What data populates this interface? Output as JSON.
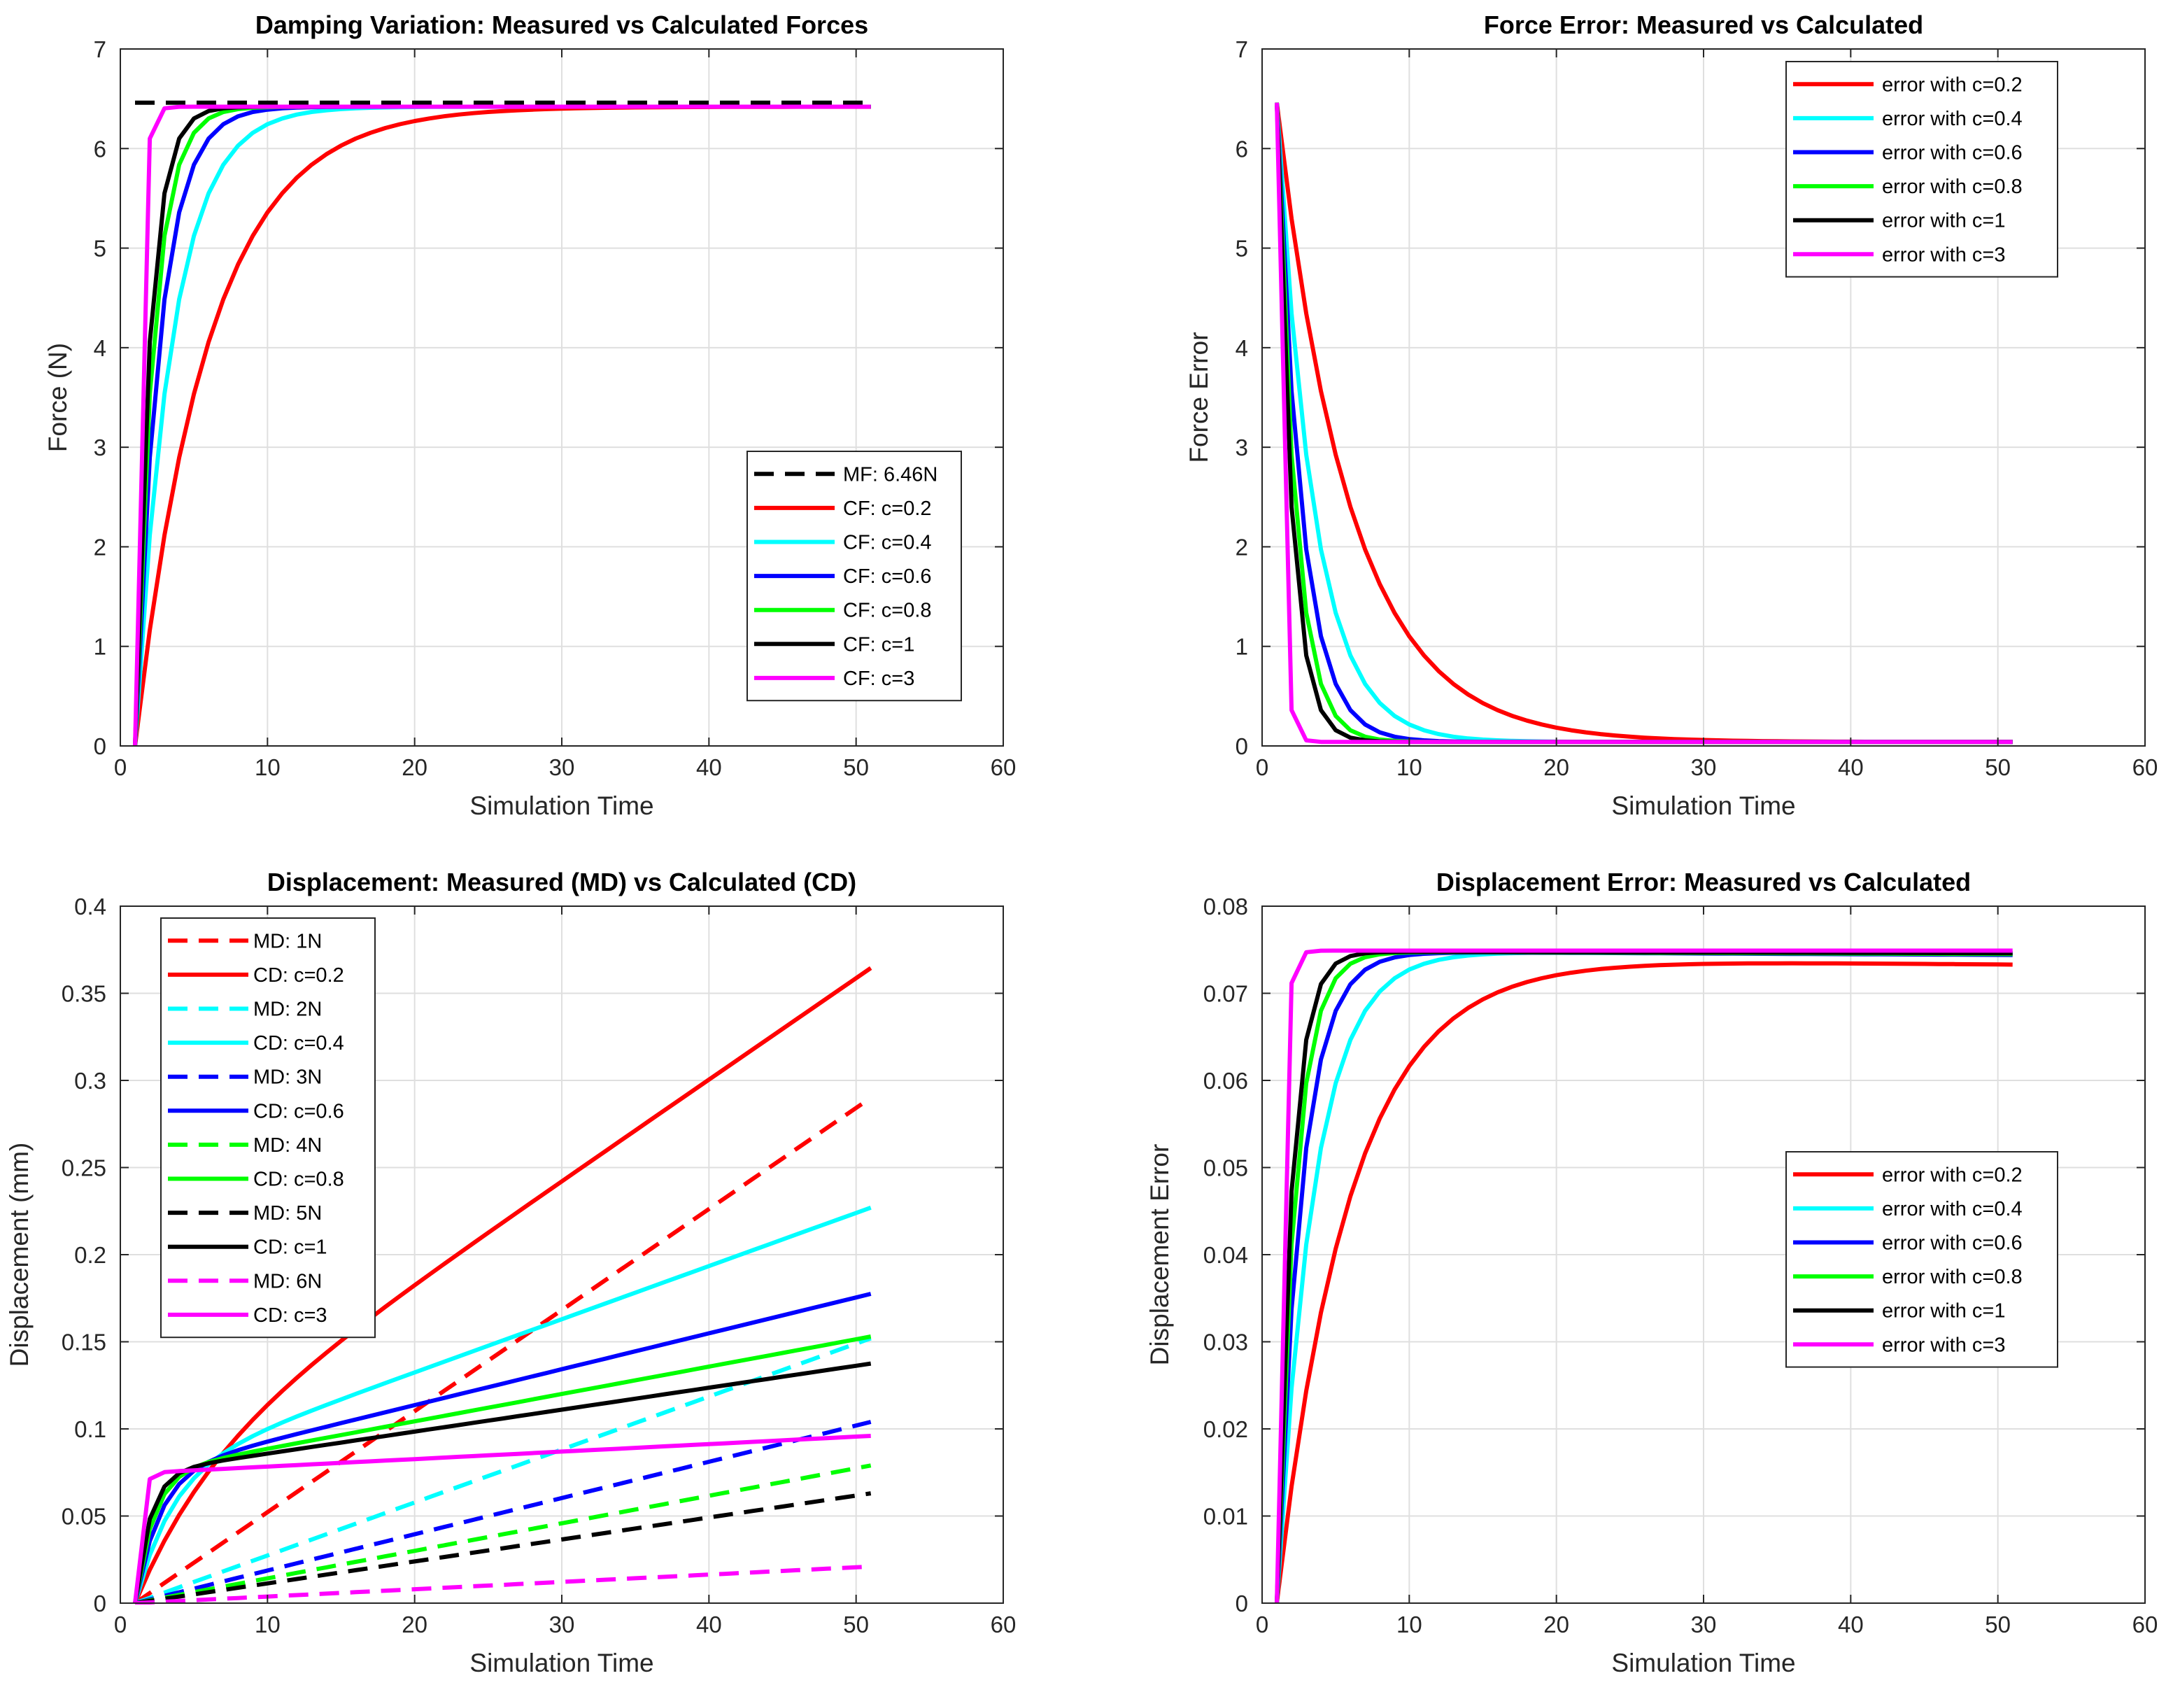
{
  "chart_data": [
    {
      "id": "force",
      "type": "line",
      "title": "Damping Variation: Measured vs Calculated Forces",
      "xlabel": "Simulation Time",
      "ylabel": "Force (N)",
      "xlim": [
        0,
        60
      ],
      "ylim": [
        0,
        7
      ],
      "xticks": [
        0,
        10,
        20,
        30,
        40,
        50,
        60
      ],
      "yticks": [
        0,
        1,
        2,
        3,
        4,
        5,
        6,
        7
      ],
      "xtick_labels": [
        "0",
        "10",
        "20",
        "30",
        "40",
        "50",
        "60"
      ],
      "ytick_labels": [
        "0",
        "1",
        "2",
        "3",
        "4",
        "5",
        "6",
        "7"
      ],
      "grid": true,
      "legend_position": "lower-right",
      "series": [
        {
          "name": "MF: 6.46N",
          "color": "#000000",
          "style": "dashed",
          "model": "const",
          "value": 6.46,
          "t0": 1,
          "t1": 51
        },
        {
          "name": "CF: c=0.2",
          "color": "#ff0000",
          "style": "solid",
          "model": "rise",
          "final": 6.42,
          "c": 0.2,
          "t0": 1,
          "t1": 51
        },
        {
          "name": "CF: c=0.4",
          "color": "#00ffff",
          "style": "solid",
          "model": "rise",
          "final": 6.42,
          "c": 0.4,
          "t0": 1,
          "t1": 51
        },
        {
          "name": "CF: c=0.6",
          "color": "#0000ff",
          "style": "solid",
          "model": "rise",
          "final": 6.42,
          "c": 0.6,
          "t0": 1,
          "t1": 51
        },
        {
          "name": "CF: c=0.8",
          "color": "#00ff00",
          "style": "solid",
          "model": "rise",
          "final": 6.42,
          "c": 0.8,
          "t0": 1,
          "t1": 51
        },
        {
          "name": "CF: c=1",
          "color": "#000000",
          "style": "solid",
          "model": "rise",
          "final": 6.42,
          "c": 1,
          "t0": 1,
          "t1": 51
        },
        {
          "name": "CF: c=3",
          "color": "#ff00ff",
          "style": "solid",
          "model": "rise",
          "final": 6.42,
          "c": 3,
          "t0": 1,
          "t1": 51
        }
      ]
    },
    {
      "id": "force-error",
      "type": "line",
      "title": "Force Error: Measured vs Calculated",
      "xlabel": "Simulation Time",
      "ylabel": "Force Error",
      "xlim": [
        0,
        60
      ],
      "ylim": [
        0,
        7
      ],
      "xticks": [
        0,
        10,
        20,
        30,
        40,
        50,
        60
      ],
      "yticks": [
        0,
        1,
        2,
        3,
        4,
        5,
        6,
        7
      ],
      "xtick_labels": [
        "0",
        "10",
        "20",
        "30",
        "40",
        "50",
        "60"
      ],
      "ytick_labels": [
        "0",
        "1",
        "2",
        "3",
        "4",
        "5",
        "6",
        "7"
      ],
      "grid": true,
      "legend_position": "top-right",
      "series": [
        {
          "name": "error with c=0.2",
          "color": "#ff0000",
          "style": "solid",
          "model": "decay",
          "initial": 6.46,
          "floor": 0.04,
          "c": 0.2,
          "t0": 1,
          "t1": 51
        },
        {
          "name": "error with c=0.4",
          "color": "#00ffff",
          "style": "solid",
          "model": "decay",
          "initial": 6.46,
          "floor": 0.04,
          "c": 0.4,
          "t0": 1,
          "t1": 51
        },
        {
          "name": "error with c=0.6",
          "color": "#0000ff",
          "style": "solid",
          "model": "decay",
          "initial": 6.46,
          "floor": 0.04,
          "c": 0.6,
          "t0": 1,
          "t1": 51
        },
        {
          "name": "error with c=0.8",
          "color": "#00ff00",
          "style": "solid",
          "model": "decay",
          "initial": 6.46,
          "floor": 0.04,
          "c": 0.8,
          "t0": 1,
          "t1": 51
        },
        {
          "name": "error with c=1",
          "color": "#000000",
          "style": "solid",
          "model": "decay",
          "initial": 6.46,
          "floor": 0.04,
          "c": 1,
          "t0": 1,
          "t1": 51
        },
        {
          "name": "error with c=3",
          "color": "#ff00ff",
          "style": "solid",
          "model": "decay",
          "initial": 6.46,
          "floor": 0.04,
          "c": 3,
          "t0": 1,
          "t1": 51
        }
      ]
    },
    {
      "id": "displacement",
      "type": "line",
      "title": "Displacement: Measured (MD) vs Calculated (CD)",
      "xlabel": "Simulation Time",
      "ylabel": "Displacement (mm)",
      "xlim": [
        0,
        60
      ],
      "ylim": [
        0,
        0.4
      ],
      "xticks": [
        0,
        10,
        20,
        30,
        40,
        50,
        60
      ],
      "yticks": [
        0,
        0.05,
        0.1,
        0.15,
        0.2,
        0.25,
        0.3,
        0.35,
        0.4
      ],
      "xtick_labels": [
        "0",
        "10",
        "20",
        "30",
        "40",
        "50",
        "60"
      ],
      "ytick_labels": [
        "0",
        "0.05",
        "0.1",
        "0.15",
        "0.2",
        "0.25",
        "0.3",
        "0.35",
        "0.4"
      ],
      "grid": true,
      "legend_position": "top-left",
      "series": [
        {
          "name": "MD: 1N",
          "color": "#ff0000",
          "style": "dashed",
          "model": "linear",
          "end": 0.29,
          "t0": 1,
          "t1": 51
        },
        {
          "name": "CD: c=0.2",
          "color": "#ff0000",
          "style": "solid",
          "model": "risedrift",
          "plateau": 0.0735,
          "slope": 0.00582,
          "c": 0.2,
          "t0": 1,
          "t1": 51
        },
        {
          "name": "MD: 2N",
          "color": "#00ffff",
          "style": "dashed",
          "model": "linear",
          "end": 0.152,
          "t0": 1,
          "t1": 51
        },
        {
          "name": "CD: c=0.4",
          "color": "#00ffff",
          "style": "solid",
          "model": "risedrift",
          "plateau": 0.0745,
          "slope": 0.00305,
          "c": 0.4,
          "t0": 1,
          "t1": 51
        },
        {
          "name": "MD: 3N",
          "color": "#0000ff",
          "style": "dashed",
          "model": "linear",
          "end": 0.104,
          "t0": 1,
          "t1": 51
        },
        {
          "name": "CD: c=0.6",
          "color": "#0000ff",
          "style": "solid",
          "model": "risedrift",
          "plateau": 0.0745,
          "slope": 0.00206,
          "c": 0.6,
          "t0": 1,
          "t1": 51
        },
        {
          "name": "MD: 4N",
          "color": "#00ff00",
          "style": "dashed",
          "model": "linear",
          "end": 0.079,
          "t0": 1,
          "t1": 51
        },
        {
          "name": "CD: c=0.8",
          "color": "#00ff00",
          "style": "solid",
          "model": "risedrift",
          "plateau": 0.0745,
          "slope": 0.00157,
          "c": 0.8,
          "t0": 1,
          "t1": 51
        },
        {
          "name": "MD: 5N",
          "color": "#000000",
          "style": "dashed",
          "model": "linear",
          "end": 0.063,
          "t0": 1,
          "t1": 51
        },
        {
          "name": "CD: c=1",
          "color": "#000000",
          "style": "solid",
          "model": "risedrift",
          "plateau": 0.0745,
          "slope": 0.00126,
          "c": 1,
          "t0": 1,
          "t1": 51
        },
        {
          "name": "MD: 6N",
          "color": "#ff00ff",
          "style": "dashed",
          "model": "linear",
          "end": 0.021,
          "t0": 1,
          "t1": 51
        },
        {
          "name": "CD: c=3",
          "color": "#ff00ff",
          "style": "solid",
          "model": "risedrift",
          "plateau": 0.0745,
          "slope": 0.00043,
          "c": 3,
          "t0": 1,
          "t1": 51
        }
      ]
    },
    {
      "id": "displacement-error",
      "type": "line",
      "title": "Displacement Error: Measured vs Calculated",
      "xlabel": "Simulation Time",
      "ylabel": "Displacement Error",
      "xlim": [
        0,
        60
      ],
      "ylim": [
        0,
        0.08
      ],
      "xticks": [
        0,
        10,
        20,
        30,
        40,
        50,
        60
      ],
      "yticks": [
        0,
        0.01,
        0.02,
        0.03,
        0.04,
        0.05,
        0.06,
        0.07,
        0.08
      ],
      "xtick_labels": [
        "0",
        "10",
        "20",
        "30",
        "40",
        "50",
        "60"
      ],
      "ytick_labels": [
        "0",
        "0.01",
        "0.02",
        "0.03",
        "0.04",
        "0.05",
        "0.06",
        "0.07",
        "0.08"
      ],
      "grid": true,
      "legend_position": "center-right",
      "series": [
        {
          "name": "error with c=0.2",
          "color": "#ff0000",
          "style": "solid",
          "model": "risesag",
          "final": 0.074,
          "sag": 0.0007,
          "c": 0.2,
          "t0": 1,
          "t1": 51
        },
        {
          "name": "error with c=0.4",
          "color": "#00ffff",
          "style": "solid",
          "model": "risesag",
          "final": 0.0748,
          "sag": 0.0002,
          "c": 0.4,
          "t0": 1,
          "t1": 51
        },
        {
          "name": "error with c=0.6",
          "color": "#0000ff",
          "style": "solid",
          "model": "risesag",
          "final": 0.0748,
          "sag": 0.0004,
          "c": 0.6,
          "t0": 1,
          "t1": 51
        },
        {
          "name": "error with c=0.8",
          "color": "#00ff00",
          "style": "solid",
          "model": "risesag",
          "final": 0.0748,
          "sag": 0.0003,
          "c": 0.8,
          "t0": 1,
          "t1": 51
        },
        {
          "name": "error with c=1",
          "color": "#000000",
          "style": "solid",
          "model": "risesag",
          "final": 0.0748,
          "sag": 0.0002,
          "c": 1,
          "t0": 1,
          "t1": 51
        },
        {
          "name": "error with c=3",
          "color": "#ff00ff",
          "style": "solid",
          "model": "risesag",
          "final": 0.0749,
          "sag": 0.0,
          "c": 3,
          "t0": 1,
          "t1": 51
        }
      ]
    }
  ]
}
